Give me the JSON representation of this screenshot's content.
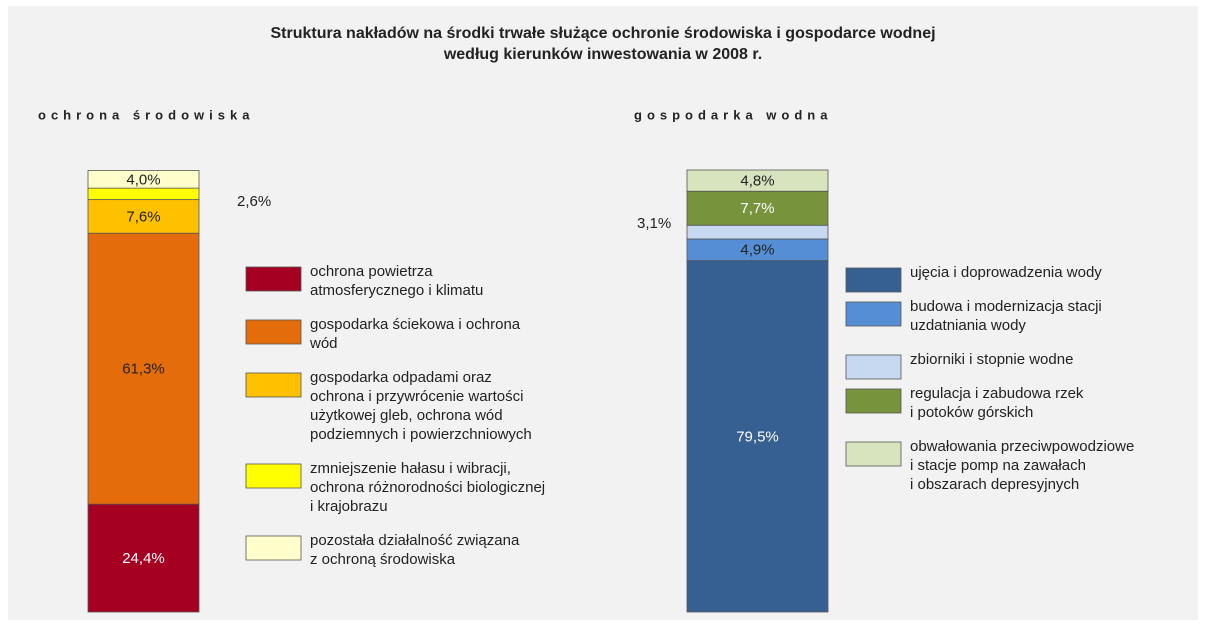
{
  "title": [
    "Struktura nakładów na środki trwałe służące ochronie środowiska i gospodarce wodnej",
    "według kierunków inwestowania w 2008 r."
  ],
  "chart_data": [
    {
      "type": "stacked-bar",
      "title": "ochrona środowiska",
      "ylim": [
        0,
        100
      ],
      "series": [
        {
          "name": [
            "ochrona powietrza",
            "atmosferycznego i klimatu"
          ],
          "color": "#a50021",
          "label_color": "#ffffff",
          "values": [
            24.4
          ],
          "value_labels": [
            "24,4%"
          ]
        },
        {
          "name": [
            "gospodarka ściekowa i ochrona",
            "wód"
          ],
          "color": "#e46c0a",
          "label_color": "#222222",
          "values": [
            61.3
          ],
          "value_labels": [
            "61,3%"
          ]
        },
        {
          "name": [
            "gospodarka odpadami oraz",
            "ochrona i przywrócenie wartości",
            "użytkowej gleb, ochrona wód",
            "podziemnych i powierzchniowych"
          ],
          "color": "#ffc000",
          "label_color": "#222222",
          "values": [
            7.6
          ],
          "value_labels": [
            "7,6%"
          ]
        },
        {
          "name": [
            "zmniejszenie hałasu i wibracji,",
            "ochrona różnorodności biologicznej",
            "i krajobrazu"
          ],
          "color": "#ffff00",
          "label_color": "#222222",
          "values": [
            2.6
          ],
          "value_labels": [
            "2,6%"
          ]
        },
        {
          "name": [
            "pozostała działalność związana",
            "z ochroną środowiska"
          ],
          "color": "#ffffcc",
          "label_color": "#222222",
          "values": [
            4.0
          ],
          "value_labels": [
            "4,0%"
          ]
        }
      ]
    },
    {
      "type": "stacked-bar",
      "title": "gospodarka wodna",
      "ylim": [
        0,
        100
      ],
      "series": [
        {
          "name": [
            "ujęcia i doprowadzenia wody"
          ],
          "color": "#366092",
          "label_color": "#ffffff",
          "values": [
            79.5
          ],
          "value_labels": [
            "79,5%"
          ]
        },
        {
          "name": [
            "budowa i modernizacja stacji",
            "uzdatniania wody"
          ],
          "color": "#558ed5",
          "label_color": "#222222",
          "values": [
            4.9
          ],
          "value_labels": [
            "4,9%"
          ]
        },
        {
          "name": [
            "zbiorniki i stopnie wodne"
          ],
          "color": "#c6d9f1",
          "label_color": "#222222",
          "values": [
            3.1
          ],
          "value_labels": [
            "3,1%"
          ]
        },
        {
          "name": [
            "regulacja i zabudowa rzek",
            "i potoków górskich"
          ],
          "color": "#77933c",
          "label_color": "#ffffff",
          "values": [
            7.7
          ],
          "value_labels": [
            "7,7%"
          ]
        },
        {
          "name": [
            "obwałowania przeciwpowodziowe",
            "i stacje pomp na zawałach",
            "i obszarach depresyjnych"
          ],
          "color": "#d7e4bd",
          "label_color": "#222222",
          "values": [
            4.8
          ],
          "value_labels": [
            "4,8%"
          ]
        }
      ]
    }
  ]
}
